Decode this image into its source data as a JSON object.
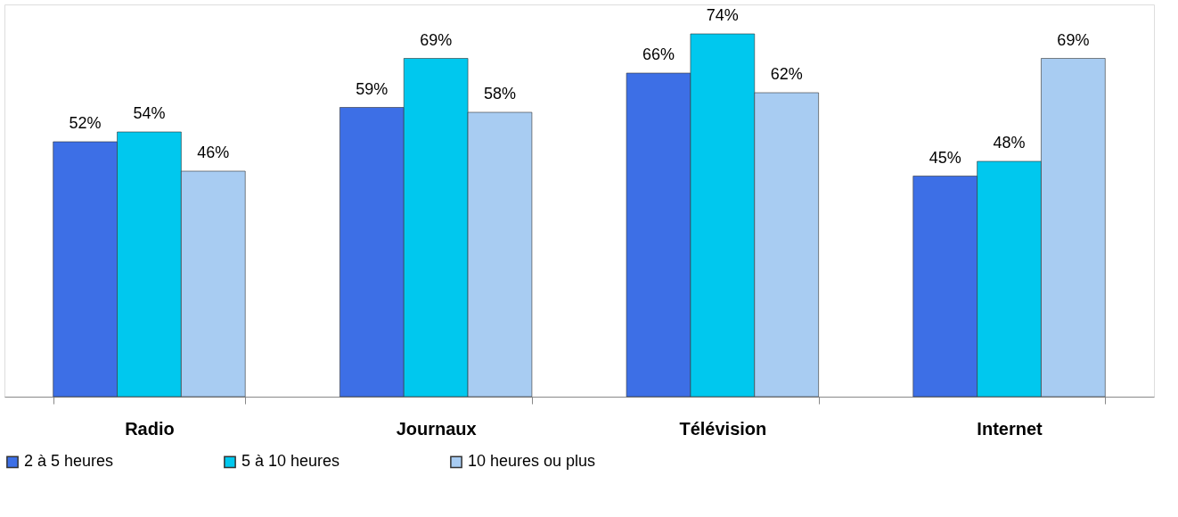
{
  "chart_data": {
    "type": "bar",
    "categories": [
      "Radio",
      "Journaux",
      "Télévision",
      "Internet"
    ],
    "legend": "bottom",
    "grid": false,
    "tick_labels": "x",
    "series": [
      {
        "name": "2 à 5 heures",
        "color": "#3d6fe6",
        "values": [
          52,
          59,
          66,
          45
        ],
        "value_labels": [
          "52%",
          "59%",
          "66%",
          "45%"
        ]
      },
      {
        "name": "5 à 10 heures",
        "color": "#00c8ee",
        "values": [
          54,
          69,
          74,
          48
        ],
        "value_labels": [
          "54%",
          "69%",
          "74%",
          "48%"
        ]
      },
      {
        "name": "10 heures ou plus",
        "color": "#a8ccf2",
        "values": [
          46,
          58,
          62,
          69
        ],
        "value_labels": [
          "46%",
          "58%",
          "62%",
          "69%"
        ]
      }
    ]
  }
}
